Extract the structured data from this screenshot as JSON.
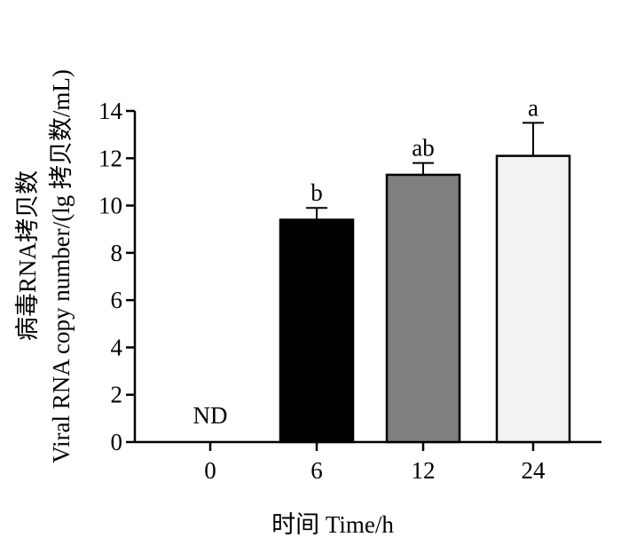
{
  "chart_data": {
    "type": "bar",
    "categories": [
      "0",
      "6",
      "12",
      "24"
    ],
    "values": [
      0,
      9.4,
      11.3,
      12.1
    ],
    "errors": [
      0,
      0.5,
      0.5,
      1.4
    ],
    "bar_labels": [
      "ND",
      "b",
      "ab",
      "a"
    ],
    "bar_colors": [
      "#ffffff",
      "#000000",
      "#7f7f7f",
      "#f2f2f2"
    ],
    "xlabel": "时间 Time/h",
    "ylabel_line1": "病毒RNA拷贝数",
    "ylabel_line2": "Viral RNA copy number/(lg 拷贝数/mL)",
    "ylim": [
      0,
      14
    ],
    "yticks": [
      "0",
      "2",
      "4",
      "6",
      "8",
      "10",
      "12",
      "14"
    ],
    "grid": false,
    "legend": "none"
  }
}
